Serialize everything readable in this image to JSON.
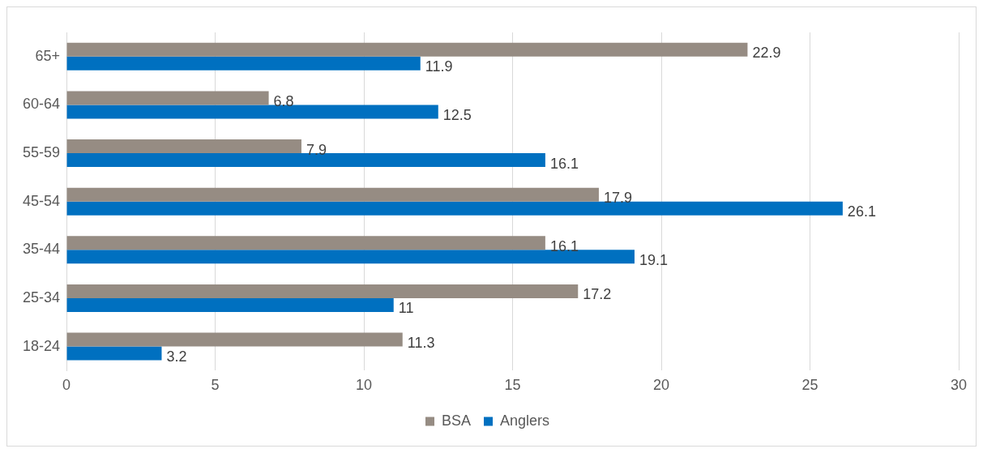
{
  "chart_data": {
    "type": "bar",
    "orientation": "horizontal",
    "categories": [
      "65+",
      "60-64",
      "55-59",
      "45-54",
      "35-44",
      "25-34",
      "18-24"
    ],
    "series": [
      {
        "name": "BSA",
        "color": "#968c83",
        "values": [
          22.9,
          6.8,
          7.9,
          17.9,
          16.1,
          17.2,
          11.3
        ]
      },
      {
        "name": "Anglers",
        "color": "#0070c0",
        "values": [
          11.9,
          12.5,
          16.1,
          26.1,
          19.1,
          11,
          3.2
        ]
      }
    ],
    "xlim": [
      0,
      30
    ],
    "xticks": [
      0,
      5,
      10,
      15,
      20,
      25,
      30
    ],
    "grid": "x",
    "legend": "bottom",
    "data_labels": true
  }
}
